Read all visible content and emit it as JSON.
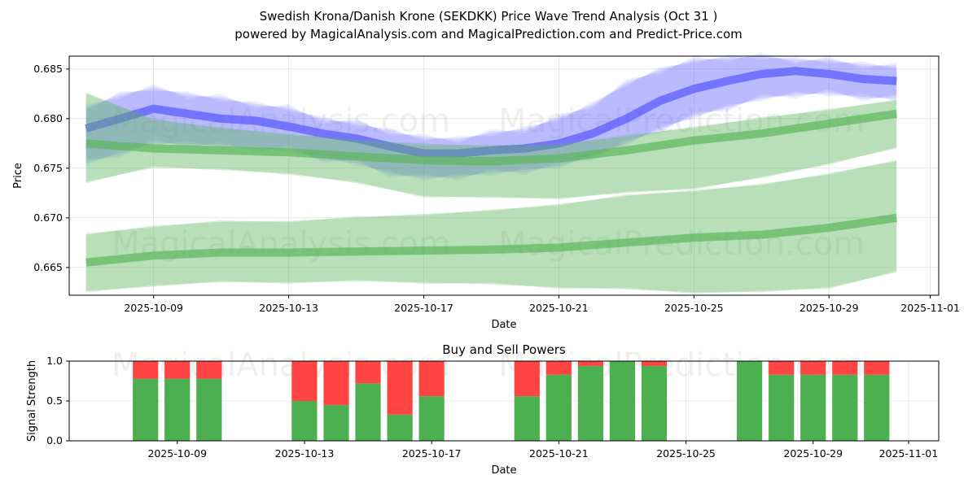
{
  "title_line1": "Swedish Krona/Danish Krone (SEKDKK) Price Wave Trend Analysis (Oct 31 )",
  "title_line2": "powered by MagicalAnalysis.com and MagicalPrediction.com and Predict-Price.com",
  "watermarks": {
    "left": "MagicalAnalysis.com",
    "right": "MagicalPrediction.com"
  },
  "colors": {
    "green": "#4caf50",
    "red": "#ff4444",
    "blue": "#6464ff",
    "band_green": "#5cb85c"
  },
  "chart_data": [
    {
      "type": "area",
      "title": "",
      "xlabel": "Date",
      "ylabel": "Price",
      "xlim": [
        "2025-10-06",
        "2025-11-01"
      ],
      "ylim": [
        0.6622,
        0.6863
      ],
      "x_ticks": [
        "2025-10-09",
        "2025-10-13",
        "2025-10-17",
        "2025-10-21",
        "2025-10-25",
        "2025-10-29",
        "2025-11-01"
      ],
      "y_ticks": [
        "0.665",
        "0.670",
        "0.675",
        "0.680",
        "0.685"
      ],
      "series": [
        {
          "name": "price-wave-blue",
          "color": "blue",
          "x": [
            "2025-10-07",
            "2025-10-08",
            "2025-10-09",
            "2025-10-10",
            "2025-10-11",
            "2025-10-12",
            "2025-10-13",
            "2025-10-14",
            "2025-10-15",
            "2025-10-16",
            "2025-10-17",
            "2025-10-18",
            "2025-10-19",
            "2025-10-20",
            "2025-10-21",
            "2025-10-22",
            "2025-10-23",
            "2025-10-24",
            "2025-10-25",
            "2025-10-26",
            "2025-10-27",
            "2025-10-28",
            "2025-10-29",
            "2025-10-30",
            "2025-10-31"
          ],
          "values": [
            0.679,
            0.68,
            0.681,
            0.6805,
            0.68,
            0.6798,
            0.6792,
            0.6785,
            0.678,
            0.6772,
            0.6765,
            0.6765,
            0.6768,
            0.677,
            0.6775,
            0.6785,
            0.68,
            0.6818,
            0.683,
            0.6838,
            0.6845,
            0.6848,
            0.6845,
            0.684,
            0.6838
          ],
          "upper": [
            0.681,
            0.6825,
            0.683,
            0.6825,
            0.682,
            0.6815,
            0.681,
            0.68,
            0.6795,
            0.6788,
            0.678,
            0.678,
            0.6785,
            0.679,
            0.68,
            0.6815,
            0.6835,
            0.685,
            0.6858,
            0.6862,
            0.6862,
            0.686,
            0.6858,
            0.6855,
            0.6852
          ],
          "lower": [
            0.6755,
            0.6765,
            0.6775,
            0.6775,
            0.6772,
            0.677,
            0.6768,
            0.676,
            0.6755,
            0.6745,
            0.674,
            0.6742,
            0.6745,
            0.6748,
            0.6752,
            0.6762,
            0.6775,
            0.679,
            0.6802,
            0.6812,
            0.682,
            0.6825,
            0.6825,
            0.6822,
            0.682
          ]
        },
        {
          "name": "trend-band-green-1",
          "color": "band_green",
          "x": [
            "2025-10-07",
            "2025-10-09",
            "2025-10-11",
            "2025-10-13",
            "2025-10-15",
            "2025-10-17",
            "2025-10-19",
            "2025-10-21",
            "2025-10-23",
            "2025-10-25",
            "2025-10-27",
            "2025-10-29",
            "2025-10-31"
          ],
          "values": [
            0.6775,
            0.677,
            0.6768,
            0.6766,
            0.6762,
            0.6758,
            0.6757,
            0.676,
            0.6768,
            0.6778,
            0.6785,
            0.6795,
            0.6805
          ],
          "upper": [
            0.6825,
            0.68,
            0.679,
            0.6785,
            0.6778,
            0.6775,
            0.6772,
            0.6775,
            0.6782,
            0.6792,
            0.68,
            0.681,
            0.6818
          ],
          "lower": [
            0.6735,
            0.6752,
            0.6748,
            0.6745,
            0.6735,
            0.6722,
            0.672,
            0.672,
            0.6725,
            0.673,
            0.674,
            0.6755,
            0.677
          ]
        },
        {
          "name": "trend-band-green-2",
          "color": "band_green",
          "x": [
            "2025-10-07",
            "2025-10-09",
            "2025-10-11",
            "2025-10-13",
            "2025-10-15",
            "2025-10-17",
            "2025-10-19",
            "2025-10-21",
            "2025-10-23",
            "2025-10-25",
            "2025-10-27",
            "2025-10-29",
            "2025-10-31"
          ],
          "values": [
            0.6655,
            0.6662,
            0.6665,
            0.6665,
            0.6666,
            0.6667,
            0.6668,
            0.667,
            0.6675,
            0.668,
            0.6683,
            0.669,
            0.67
          ],
          "upper": [
            0.6683,
            0.6692,
            0.6696,
            0.6697,
            0.67,
            0.6704,
            0.6707,
            0.6714,
            0.6722,
            0.6728,
            0.6733,
            0.6745,
            0.6757
          ],
          "lower": [
            0.6625,
            0.6632,
            0.6635,
            0.6635,
            0.6636,
            0.6635,
            0.6633,
            0.663,
            0.6628,
            0.6625,
            0.6625,
            0.663,
            0.6645
          ]
        }
      ]
    },
    {
      "type": "bar",
      "stacked": true,
      "title": "Buy and Sell Powers",
      "xlabel": "Date",
      "ylabel": "Signal Strength",
      "xlim": [
        "2025-10-06",
        "2025-11-01"
      ],
      "ylim": [
        0,
        1
      ],
      "x_ticks": [
        "2025-10-09",
        "2025-10-13",
        "2025-10-17",
        "2025-10-21",
        "2025-10-25",
        "2025-10-29",
        "2025-11-01"
      ],
      "y_ticks": [
        "0.0",
        "0.5",
        "1.0"
      ],
      "categories": [
        "2025-10-08",
        "2025-10-09",
        "2025-10-10",
        "2025-10-13",
        "2025-10-14",
        "2025-10-15",
        "2025-10-16",
        "2025-10-17",
        "2025-10-20",
        "2025-10-21",
        "2025-10-22",
        "2025-10-23",
        "2025-10-24",
        "2025-10-27",
        "2025-10-28",
        "2025-10-29",
        "2025-10-30",
        "2025-10-31"
      ],
      "series": [
        {
          "name": "Buy",
          "color": "green",
          "values": [
            0.78,
            0.78,
            0.78,
            0.5,
            0.45,
            0.72,
            0.33,
            0.56,
            0.56,
            0.83,
            0.94,
            1.0,
            0.94,
            1.0,
            0.83,
            0.83,
            0.83,
            0.83
          ]
        },
        {
          "name": "Sell",
          "color": "red",
          "values": [
            0.22,
            0.22,
            0.22,
            0.5,
            0.55,
            0.28,
            0.67,
            0.44,
            0.44,
            0.17,
            0.06,
            0.0,
            0.06,
            0.0,
            0.17,
            0.17,
            0.17,
            0.17
          ]
        }
      ]
    }
  ]
}
